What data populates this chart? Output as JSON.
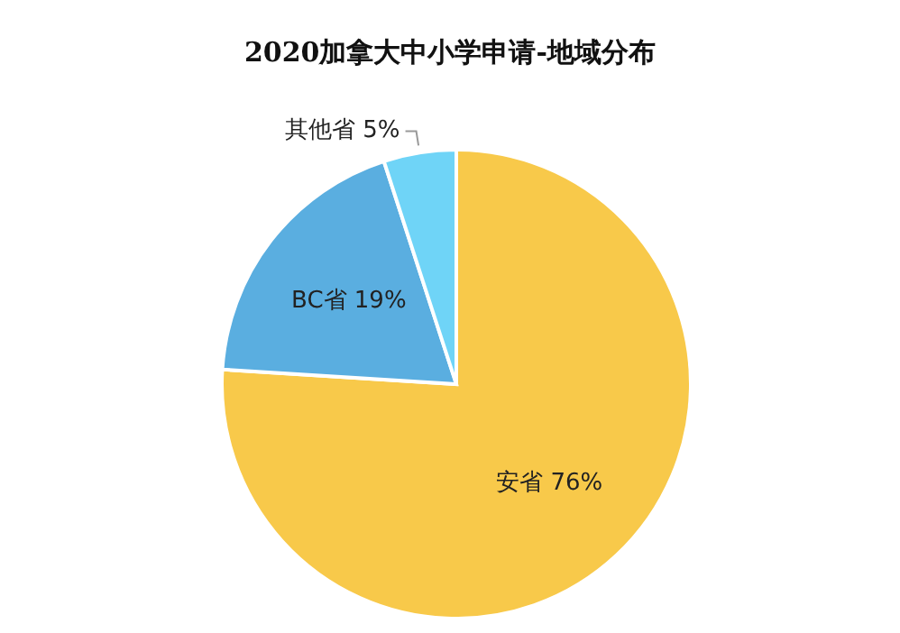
{
  "chart_data": {
    "type": "pie",
    "title": "2020加拿大中小学申请-地域分布",
    "categories": [
      "安省",
      "BC省",
      "其他省"
    ],
    "values": [
      76,
      19,
      5
    ],
    "value_labels": [
      "76%",
      "19%",
      "5%"
    ],
    "colors": [
      "#f8c94a",
      "#5aaee0",
      "#6fd4f7"
    ],
    "legend": false
  }
}
